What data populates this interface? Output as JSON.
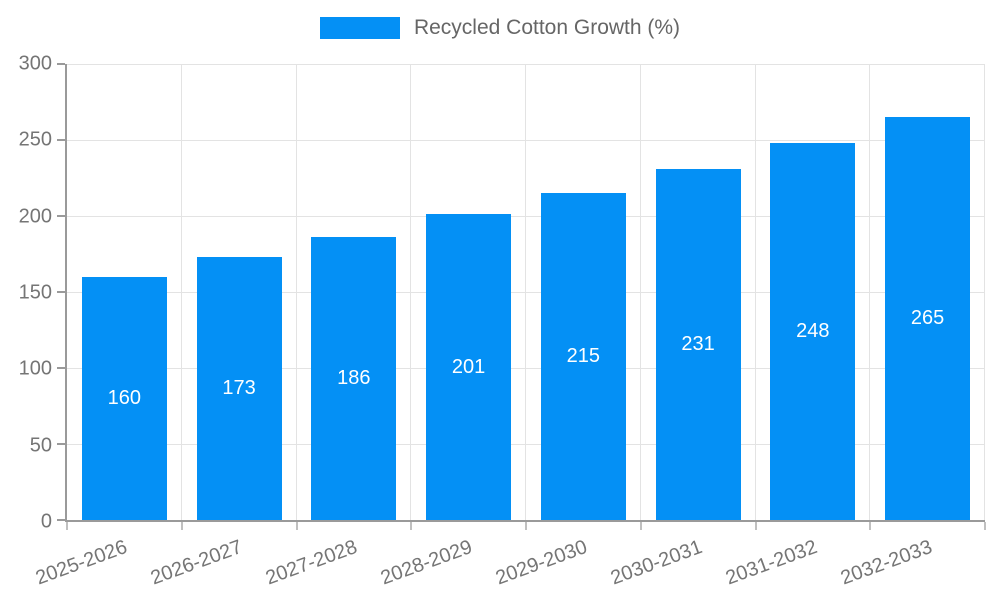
{
  "chart_data": {
    "type": "bar",
    "title": "Recycled Cotton Growth (%)",
    "categories": [
      "2025-2026",
      "2026-2027",
      "2027-2028",
      "2028-2029",
      "2029-2030",
      "2030-2031",
      "2031-2032",
      "2032-2033"
    ],
    "values": [
      160,
      173,
      186,
      201,
      215,
      231,
      248,
      265
    ],
    "xlabel": "",
    "ylabel": "",
    "ylim": [
      0,
      300
    ],
    "ytick_step": 50,
    "grid": true,
    "legend_position": "top",
    "value_labels": "inside-center",
    "colors": {
      "bar": "#0490f5",
      "bar_label": "#ffffff",
      "axis_line": "#9a9a9a",
      "gridline": "#e3e3e3",
      "tick_text": "#757575",
      "legend_text": "#666666",
      "background": "#ffffff"
    }
  }
}
